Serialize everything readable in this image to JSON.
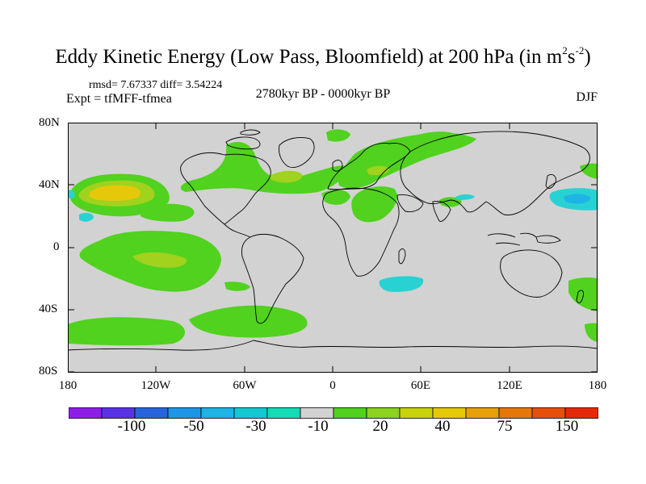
{
  "header": {
    "title_main": "Eddy Kinetic Energy (Low Pass, Bloomfield) at 200 hPa (in m",
    "title_sup1": "2",
    "title_mid": "s",
    "title_sup2": "-2",
    "title_end": ")",
    "stats": "rmsd= 7.67337 diff= 3.54224",
    "experiment": "Expt = tfMFF-tfmea",
    "period": "2780kyr BP - 0000kyr BP",
    "season": "DJF"
  },
  "axes": {
    "lat_labels": [
      "80N",
      "40N",
      "0",
      "40S",
      "80S"
    ],
    "lon_labels": [
      "180",
      "120W",
      "60W",
      "0",
      "60E",
      "120E",
      "180"
    ]
  },
  "colorbar": {
    "labels": [
      "-100",
      "-50",
      "-30",
      "-10",
      "20",
      "40",
      "75",
      "150"
    ],
    "colors": [
      "#8c1ee6",
      "#5a32e6",
      "#2864dc",
      "#1e96e6",
      "#1eb4e6",
      "#14c8d2",
      "#14dcb4",
      "#d2d2d2",
      "#50d21e",
      "#8cd21e",
      "#c8d20a",
      "#e6c80a",
      "#e6a00a",
      "#e6780a",
      "#e6500a",
      "#e6280a"
    ]
  },
  "colors": {
    "land_sea_bg": "#d2d2d2",
    "pos_light": "#50d21e",
    "pos_mid": "#a0d21e",
    "pos_high": "#e6c80a",
    "neg_light": "#28d2d2",
    "neg_mid": "#1eb4e6"
  }
}
